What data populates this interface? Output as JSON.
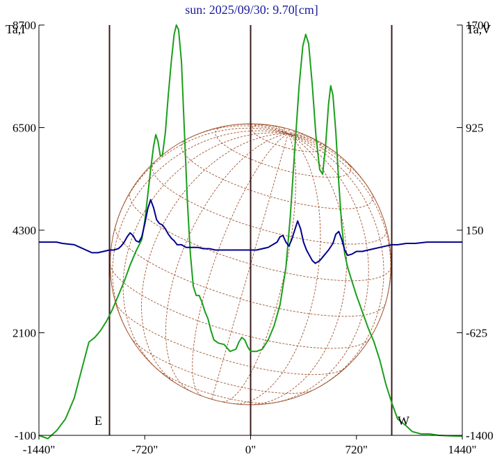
{
  "chart_data": {
    "type": "line",
    "title": "sun: 2025/09/30: 9.70[cm]",
    "y_left_label": "Ta,I",
    "y_right_label": "Ta,V",
    "x_ticks": [
      "-1440\"",
      "-720\"",
      "0\"",
      "720\"",
      "1440\""
    ],
    "x_tick_values": [
      -1440,
      -720,
      0,
      720,
      1440
    ],
    "xlim": [
      -1440,
      1440
    ],
    "y_left_ticks": [
      "8700",
      "6500",
      "4300",
      "2100",
      "-100"
    ],
    "y_left_values": [
      8700,
      6500,
      4300,
      2100,
      -100
    ],
    "ylim_left": [
      -100,
      8700
    ],
    "y_right_ticks": [
      "1700",
      "925",
      "150",
      "-625",
      "-1400"
    ],
    "y_right_values": [
      1700,
      925,
      150,
      -625,
      -1400
    ],
    "ylim_right": [
      -1400,
      1700
    ],
    "annotations": {
      "east": "E",
      "west": "W"
    },
    "vertical_lines_x": [
      -960,
      0,
      960
    ],
    "colors": {
      "I": "#1a9e1a",
      "V": "#00008b",
      "disk": "#a0522d",
      "title": "#1a1a9c",
      "verticals": "#3a1a1a"
    },
    "series": [
      {
        "key": "I",
        "axis": "left",
        "points": [
          [
            -1440,
            -100
          ],
          [
            -1380,
            -170
          ],
          [
            -1320,
            0
          ],
          [
            -1260,
            250
          ],
          [
            -1200,
            700
          ],
          [
            -1150,
            1300
          ],
          [
            -1100,
            1900
          ],
          [
            -1060,
            2000
          ],
          [
            -1020,
            2150
          ],
          [
            -980,
            2350
          ],
          [
            -940,
            2600
          ],
          [
            -900,
            2900
          ],
          [
            -860,
            3200
          ],
          [
            -820,
            3550
          ],
          [
            -780,
            3850
          ],
          [
            -740,
            4100
          ],
          [
            -720,
            4500
          ],
          [
            -700,
            5050
          ],
          [
            -680,
            5600
          ],
          [
            -660,
            6100
          ],
          [
            -645,
            6350
          ],
          [
            -630,
            6200
          ],
          [
            -615,
            5900
          ],
          [
            -600,
            5900
          ],
          [
            -580,
            6400
          ],
          [
            -560,
            7200
          ],
          [
            -540,
            7900
          ],
          [
            -520,
            8500
          ],
          [
            -505,
            8700
          ],
          [
            -490,
            8600
          ],
          [
            -470,
            7900
          ],
          [
            -450,
            6400
          ],
          [
            -430,
            4900
          ],
          [
            -410,
            3800
          ],
          [
            -390,
            3100
          ],
          [
            -370,
            2900
          ],
          [
            -350,
            2900
          ],
          [
            -330,
            2750
          ],
          [
            -310,
            2550
          ],
          [
            -290,
            2400
          ],
          [
            -270,
            2150
          ],
          [
            -250,
            1950
          ],
          [
            -220,
            1880
          ],
          [
            -180,
            1850
          ],
          [
            -140,
            1700
          ],
          [
            -100,
            1750
          ],
          [
            -80,
            1900
          ],
          [
            -60,
            2000
          ],
          [
            -40,
            1950
          ],
          [
            -20,
            1800
          ],
          [
            0,
            1700
          ],
          [
            40,
            1700
          ],
          [
            80,
            1750
          ],
          [
            120,
            1950
          ],
          [
            160,
            2250
          ],
          [
            200,
            2700
          ],
          [
            240,
            3500
          ],
          [
            270,
            4600
          ],
          [
            300,
            6000
          ],
          [
            330,
            7400
          ],
          [
            355,
            8250
          ],
          [
            375,
            8500
          ],
          [
            395,
            8300
          ],
          [
            420,
            7400
          ],
          [
            445,
            6300
          ],
          [
            470,
            5600
          ],
          [
            490,
            5500
          ],
          [
            510,
            6100
          ],
          [
            530,
            7000
          ],
          [
            545,
            7400
          ],
          [
            560,
            7200
          ],
          [
            580,
            6400
          ],
          [
            600,
            5300
          ],
          [
            620,
            4400
          ],
          [
            640,
            3800
          ],
          [
            660,
            3500
          ],
          [
            690,
            3200
          ],
          [
            720,
            2900
          ],
          [
            760,
            2550
          ],
          [
            800,
            2200
          ],
          [
            840,
            1900
          ],
          [
            880,
            1500
          ],
          [
            920,
            1000
          ],
          [
            960,
            600
          ],
          [
            1000,
            250
          ],
          [
            1060,
            100
          ],
          [
            1100,
            -20
          ],
          [
            1160,
            -70
          ],
          [
            1220,
            -70
          ],
          [
            1280,
            -100
          ],
          [
            1360,
            -110
          ],
          [
            1440,
            -120
          ]
        ]
      },
      {
        "key": "V",
        "axis": "right",
        "points": [
          [
            -1440,
            60
          ],
          [
            -1320,
            60
          ],
          [
            -1280,
            50
          ],
          [
            -1200,
            40
          ],
          [
            -1160,
            20
          ],
          [
            -1120,
            0
          ],
          [
            -1080,
            -20
          ],
          [
            -1040,
            -20
          ],
          [
            -1000,
            -10
          ],
          [
            -960,
            0
          ],
          [
            -930,
            0
          ],
          [
            -900,
            10
          ],
          [
            -880,
            30
          ],
          [
            -860,
            60
          ],
          [
            -840,
            100
          ],
          [
            -820,
            130
          ],
          [
            -800,
            110
          ],
          [
            -780,
            70
          ],
          [
            -760,
            60
          ],
          [
            -740,
            100
          ],
          [
            -720,
            200
          ],
          [
            -700,
            310
          ],
          [
            -680,
            380
          ],
          [
            -660,
            320
          ],
          [
            -640,
            230
          ],
          [
            -620,
            200
          ],
          [
            -600,
            190
          ],
          [
            -580,
            160
          ],
          [
            -560,
            120
          ],
          [
            -540,
            90
          ],
          [
            -520,
            70
          ],
          [
            -500,
            40
          ],
          [
            -470,
            40
          ],
          [
            -440,
            20
          ],
          [
            -400,
            20
          ],
          [
            -360,
            20
          ],
          [
            -320,
            10
          ],
          [
            -280,
            10
          ],
          [
            -240,
            0
          ],
          [
            -200,
            0
          ],
          [
            -160,
            0
          ],
          [
            -120,
            0
          ],
          [
            -80,
            0
          ],
          [
            -40,
            0
          ],
          [
            0,
            0
          ],
          [
            40,
            0
          ],
          [
            80,
            10
          ],
          [
            120,
            20
          ],
          [
            150,
            40
          ],
          [
            180,
            60
          ],
          [
            200,
            100
          ],
          [
            220,
            110
          ],
          [
            240,
            60
          ],
          [
            260,
            30
          ],
          [
            280,
            80
          ],
          [
            300,
            150
          ],
          [
            320,
            220
          ],
          [
            340,
            160
          ],
          [
            360,
            60
          ],
          [
            380,
            0
          ],
          [
            400,
            -40
          ],
          [
            420,
            -80
          ],
          [
            440,
            -100
          ],
          [
            470,
            -80
          ],
          [
            500,
            -40
          ],
          [
            530,
            0
          ],
          [
            560,
            50
          ],
          [
            580,
            120
          ],
          [
            600,
            140
          ],
          [
            620,
            80
          ],
          [
            640,
            0
          ],
          [
            660,
            -40
          ],
          [
            690,
            -30
          ],
          [
            720,
            -10
          ],
          [
            760,
            -10
          ],
          [
            800,
            0
          ],
          [
            840,
            10
          ],
          [
            880,
            20
          ],
          [
            920,
            30
          ],
          [
            960,
            40
          ],
          [
            1000,
            40
          ],
          [
            1060,
            50
          ],
          [
            1120,
            50
          ],
          [
            1200,
            60
          ],
          [
            1320,
            60
          ],
          [
            1440,
            60
          ]
        ]
      }
    ]
  }
}
